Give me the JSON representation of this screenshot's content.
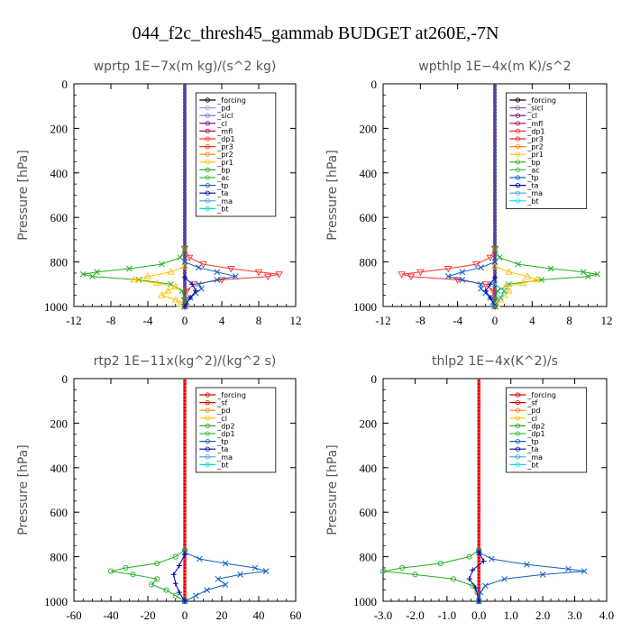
{
  "title": "044_f2c_thresh45_gammab  BUDGET at260E,-7N",
  "chart_data": [
    {
      "type": "line",
      "title": "wprtp   1E−7x(m kg)/(s^2 kg)",
      "ylabel": "Pressure [hPa]",
      "xlim": [
        -12,
        12
      ],
      "ylim": [
        1000,
        0
      ],
      "xticks": [
        "-12",
        "-8",
        "-4",
        "0",
        "4",
        "8",
        "12"
      ],
      "yticks": [
        "0",
        "200",
        "400",
        "600",
        "800",
        "1000"
      ],
      "legend": [
        "_forcing",
        "_pd",
        "_sicl",
        "_cl",
        "_mfl",
        "_dp1",
        "_pr3",
        "_pr2",
        "_pr1",
        "_bp",
        "_ac",
        "_tp",
        "_ta",
        "_ma",
        "_bt"
      ],
      "series": [
        {
          "name": "_dp1",
          "color": "#ff3030",
          "marker": "triangle-down",
          "p": [
            740,
            780,
            810,
            830,
            845,
            855,
            865,
            880,
            900,
            930,
            970,
            1000
          ],
          "x": [
            0,
            0.5,
            2.0,
            5.0,
            8.0,
            10.2,
            9.0,
            4.0,
            1.0,
            0.2,
            0,
            0
          ]
        },
        {
          "name": "_bp",
          "color": "#20b020",
          "marker": "x",
          "p": [
            740,
            780,
            810,
            830,
            845,
            855,
            865,
            880,
            900,
            930,
            970,
            1000
          ],
          "x": [
            0,
            -0.5,
            -2.5,
            -6.0,
            -9.5,
            -11.0,
            -10.0,
            -5.0,
            -1.5,
            -0.3,
            0,
            0
          ]
        },
        {
          "name": "_pr1",
          "color": "#ffc000",
          "marker": "triangle",
          "p": [
            820,
            845,
            865,
            880,
            895,
            910,
            930,
            950,
            970,
            990,
            1000
          ],
          "x": [
            0,
            -1.5,
            -4.0,
            -5.5,
            -3.0,
            -1.0,
            -1.8,
            -2.5,
            -1.0,
            -0.5,
            0
          ]
        },
        {
          "name": "_tp",
          "color": "#1060c0",
          "marker": "x",
          "p": [
            800,
            825,
            845,
            865,
            880,
            900,
            920,
            940,
            960,
            980,
            1000
          ],
          "x": [
            0,
            1.5,
            3.5,
            5.5,
            3.5,
            1.5,
            1.8,
            1.2,
            0.6,
            0.2,
            0
          ]
        },
        {
          "name": "_ta",
          "color": "#0000b0",
          "marker": "plus",
          "p": [
            870,
            900,
            930,
            960,
            1000
          ],
          "x": [
            0,
            0.8,
            1.2,
            0.6,
            0
          ]
        }
      ]
    },
    {
      "type": "line",
      "title": "wpthlp   1E−4x(m K)/s^2",
      "ylabel": "Pressure [hPa]",
      "xlim": [
        -12,
        12
      ],
      "ylim": [
        1000,
        0
      ],
      "xticks": [
        "-12",
        "-8",
        "-4",
        "0",
        "4",
        "8",
        "12"
      ],
      "yticks": [
        "0",
        "200",
        "400",
        "600",
        "800",
        "1000"
      ],
      "legend": [
        "_forcing",
        "_sicl",
        "_cl",
        "_mfl",
        "_dp1",
        "_pr3",
        "_pr2",
        "_pr1",
        "_bp",
        "_ac",
        "_tp",
        "_ta",
        "_ma",
        "_bt"
      ],
      "series": [
        {
          "name": "_dp1",
          "color": "#ff3030",
          "marker": "triangle-down",
          "p": [
            740,
            780,
            810,
            830,
            845,
            855,
            865,
            880,
            900,
            930,
            970,
            1000
          ],
          "x": [
            0,
            -0.5,
            -2.0,
            -5.0,
            -8.0,
            -10.0,
            -9.0,
            -4.0,
            -1.0,
            -0.2,
            0,
            0
          ]
        },
        {
          "name": "_bp",
          "color": "#20b020",
          "marker": "x",
          "p": [
            740,
            780,
            810,
            830,
            845,
            855,
            865,
            880,
            900,
            930,
            970,
            1000
          ],
          "x": [
            0,
            0.5,
            2.5,
            6.0,
            9.5,
            11.0,
            10.0,
            5.0,
            1.5,
            0.3,
            0,
            0
          ]
        },
        {
          "name": "_pr1",
          "color": "#ffc000",
          "marker": "triangle",
          "p": [
            820,
            845,
            865,
            880,
            895,
            910,
            930,
            950,
            970,
            990,
            1000
          ],
          "x": [
            0,
            1.5,
            3.5,
            4.5,
            3.0,
            1.2,
            1.5,
            1.0,
            0.6,
            0.2,
            0
          ]
        },
        {
          "name": "_tp",
          "color": "#1060c0",
          "marker": "x",
          "p": [
            800,
            825,
            845,
            865,
            880,
            900,
            920,
            940,
            960,
            980,
            1000
          ],
          "x": [
            0,
            -1.5,
            -3.5,
            -5.0,
            -3.5,
            -1.5,
            -1.5,
            -1.0,
            -0.5,
            -0.2,
            0
          ]
        },
        {
          "name": "_ta",
          "color": "#0000b0",
          "marker": "plus",
          "p": [
            870,
            900,
            930,
            960,
            1000
          ],
          "x": [
            0,
            -0.5,
            -1.0,
            -0.5,
            0
          ]
        },
        {
          "name": "_ac",
          "color": "#00c0c0",
          "marker": "x",
          "p": [
            900,
            930,
            960,
            1000
          ],
          "x": [
            0,
            1.0,
            0.6,
            0
          ]
        }
      ]
    },
    {
      "type": "line",
      "title": "rtp2   1E−11x(kg^2)/(kg^2 s)",
      "ylabel": "Pressure [hPa]",
      "xlim": [
        -60,
        60
      ],
      "ylim": [
        1000,
        0
      ],
      "xticks": [
        "-60",
        "-40",
        "-20",
        "0",
        "20",
        "40",
        "60"
      ],
      "yticks": [
        "0",
        "200",
        "400",
        "600",
        "800",
        "1000"
      ],
      "legend": [
        "_forcing",
        "_sf",
        "_pd",
        "_cl",
        "_dp2",
        "_dp1",
        "_tp",
        "_ta",
        "_ma",
        "_bt"
      ],
      "series": [
        {
          "name": "_dp1",
          "color": "#20b020",
          "marker": "circle",
          "p": [
            770,
            800,
            830,
            850,
            865,
            880,
            900,
            925,
            950,
            975,
            1000
          ],
          "x": [
            0,
            -5,
            -15,
            -32,
            -40,
            -28,
            -15,
            -18,
            -10,
            -5,
            0
          ]
        },
        {
          "name": "_tp",
          "color": "#1060c0",
          "marker": "x",
          "p": [
            780,
            810,
            830,
            850,
            865,
            880,
            900,
            925,
            950,
            975,
            1000
          ],
          "x": [
            0,
            8,
            22,
            38,
            44,
            30,
            18,
            22,
            12,
            6,
            0
          ]
        },
        {
          "name": "_ta",
          "color": "#0000b0",
          "marker": "plus",
          "p": [
            790,
            840,
            880,
            920,
            960,
            1000
          ],
          "x": [
            0,
            -3,
            -6,
            -5,
            -3,
            0
          ]
        },
        {
          "name": "_forcing",
          "color": "#e00000",
          "marker": "circle",
          "p": [
            0,
            1000
          ],
          "x": [
            0,
            0
          ]
        }
      ]
    },
    {
      "type": "line",
      "title": "thlp2   1E−4x(K^2)/s",
      "ylabel": "Pressure [hPa]",
      "xlim": [
        -3.0,
        4.0
      ],
      "ylim": [
        1000,
        0
      ],
      "xticks": [
        "-3.0",
        "-2.0",
        "-1.0",
        "0.0",
        "1.0",
        "2.0",
        "3.0",
        "4.0"
      ],
      "yticks": [
        "0",
        "200",
        "400",
        "600",
        "800",
        "1000"
      ],
      "legend": [
        "_forcing",
        "_sf",
        "_pd",
        "_cl",
        "_dp2",
        "_dp1",
        "_tp",
        "_ta",
        "_ma",
        "_bt"
      ],
      "series": [
        {
          "name": "_dp1",
          "color": "#20b020",
          "marker": "circle",
          "p": [
            770,
            800,
            830,
            850,
            865,
            880,
            900,
            930,
            960,
            1000
          ],
          "x": [
            0,
            -0.3,
            -1.2,
            -2.4,
            -3.0,
            -2.0,
            -0.8,
            -0.2,
            -0.05,
            0
          ]
        },
        {
          "name": "_tp",
          "color": "#1060c0",
          "marker": "x",
          "p": [
            780,
            810,
            835,
            855,
            865,
            880,
            900,
            930,
            960,
            1000
          ],
          "x": [
            0,
            0.4,
            1.5,
            2.8,
            3.3,
            2.0,
            0.8,
            0.2,
            0.05,
            0
          ]
        },
        {
          "name": "_ta",
          "color": "#0000b0",
          "marker": "plus",
          "p": [
            780,
            820,
            860,
            900,
            940,
            1000
          ],
          "x": [
            0,
            0.15,
            -0.2,
            -0.3,
            -0.1,
            0
          ]
        },
        {
          "name": "_forcing",
          "color": "#e00000",
          "marker": "circle",
          "p": [
            0,
            1000
          ],
          "x": [
            0,
            0
          ]
        }
      ]
    }
  ]
}
